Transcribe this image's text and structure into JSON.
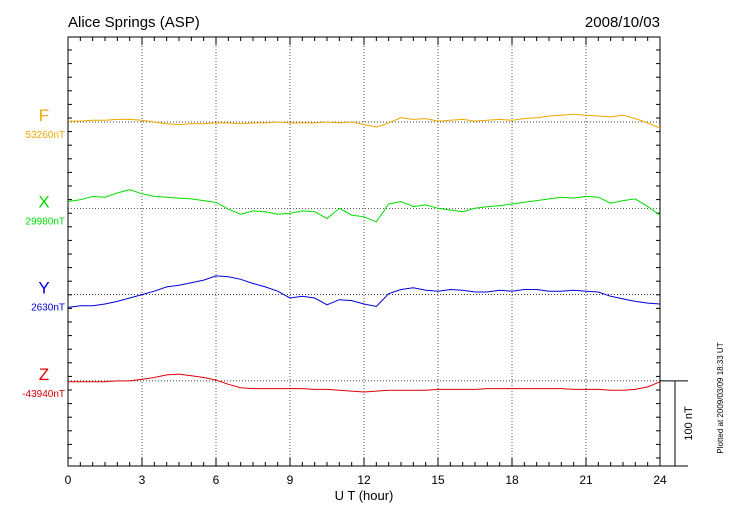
{
  "chart_data": {
    "type": "line",
    "title": "Alice Springs (ASP)",
    "date": "2008/10/03",
    "xlabel": "U T (hour)",
    "note": "Plotted at 2009/03/09 18:33 UT",
    "x": [
      0,
      0.5,
      1,
      1.5,
      2,
      2.5,
      3,
      3.5,
      4,
      4.5,
      5,
      5.5,
      6,
      6.5,
      7,
      7.5,
      8,
      8.5,
      9,
      9.5,
      10,
      10.5,
      11,
      11.5,
      12,
      12.5,
      13,
      13.5,
      14,
      14.5,
      15,
      15.5,
      16,
      16.5,
      17,
      17.5,
      18,
      18.5,
      19,
      19.5,
      20,
      20.5,
      21,
      21.5,
      22,
      22.5,
      23,
      23.5,
      24
    ],
    "xlim": [
      0,
      24
    ],
    "xticks": [
      0,
      3,
      6,
      9,
      12,
      15,
      18,
      21,
      24
    ],
    "grid": true,
    "scale": {
      "value": 100,
      "label": "100 nT"
    },
    "series": [
      {
        "name": "F",
        "color": "#f0a800",
        "baseline": {
          "value": 53260,
          "label": "53260nT"
        },
        "values": [
          53261,
          53261,
          53262,
          53262,
          53263,
          53263,
          53262,
          53260,
          53258,
          53257,
          53258,
          53258,
          53259,
          53259,
          53258,
          53259,
          53259,
          53260,
          53259,
          53259,
          53259,
          53260,
          53259,
          53260,
          53257,
          53254,
          53259,
          53265,
          53263,
          53264,
          53261,
          53262,
          53263,
          53261,
          53262,
          53263,
          53262,
          53264,
          53265,
          53267,
          53268,
          53269,
          53268,
          53267,
          53266,
          53268,
          53264,
          53259,
          53253
        ]
      },
      {
        "name": "X",
        "color": "#00dd00",
        "baseline": {
          "value": 29980,
          "label": "29980nT"
        },
        "values": [
          29988,
          29990,
          29994,
          29993,
          29998,
          30002,
          29997,
          29994,
          29993,
          29992,
          29991,
          29989,
          29987,
          29979,
          29973,
          29977,
          29976,
          29973,
          29974,
          29977,
          29976,
          29968,
          29980,
          29972,
          29970,
          29964,
          29985,
          29988,
          29982,
          29984,
          29980,
          29978,
          29976,
          29980,
          29982,
          29983,
          29985,
          29987,
          29989,
          29991,
          29993,
          29992,
          29994,
          29993,
          29986,
          29989,
          29991,
          29982,
          29972
        ]
      },
      {
        "name": "Y",
        "color": "#0000dd",
        "baseline": {
          "value": 2630,
          "label": "2630nT"
        },
        "values": [
          2615,
          2617,
          2617,
          2619,
          2622,
          2626,
          2630,
          2634,
          2639,
          2641,
          2644,
          2647,
          2652,
          2651,
          2648,
          2643,
          2639,
          2634,
          2626,
          2628,
          2626,
          2618,
          2624,
          2623,
          2619,
          2616,
          2631,
          2636,
          2638,
          2635,
          2634,
          2636,
          2635,
          2633,
          2633,
          2635,
          2634,
          2636,
          2636,
          2634,
          2634,
          2635,
          2634,
          2633,
          2628,
          2625,
          2622,
          2620,
          2619
        ]
      },
      {
        "name": "Z",
        "color": "#dd0000",
        "baseline": {
          "value": -43940,
          "label": "-43940nT"
        },
        "values": [
          -43941,
          -43941,
          -43941,
          -43941,
          -43940,
          -43940,
          -43938,
          -43936,
          -43933,
          -43932,
          -43934,
          -43936,
          -43939,
          -43944,
          -43948,
          -43949,
          -43949,
          -43949,
          -43949,
          -43949,
          -43950,
          -43950,
          -43951,
          -43952,
          -43953,
          -43952,
          -43951,
          -43951,
          -43951,
          -43951,
          -43950,
          -43950,
          -43950,
          -43950,
          -43949,
          -43949,
          -43949,
          -43949,
          -43949,
          -43949,
          -43949,
          -43950,
          -43950,
          -43950,
          -43951,
          -43951,
          -43950,
          -43947,
          -43941
        ]
      }
    ]
  }
}
